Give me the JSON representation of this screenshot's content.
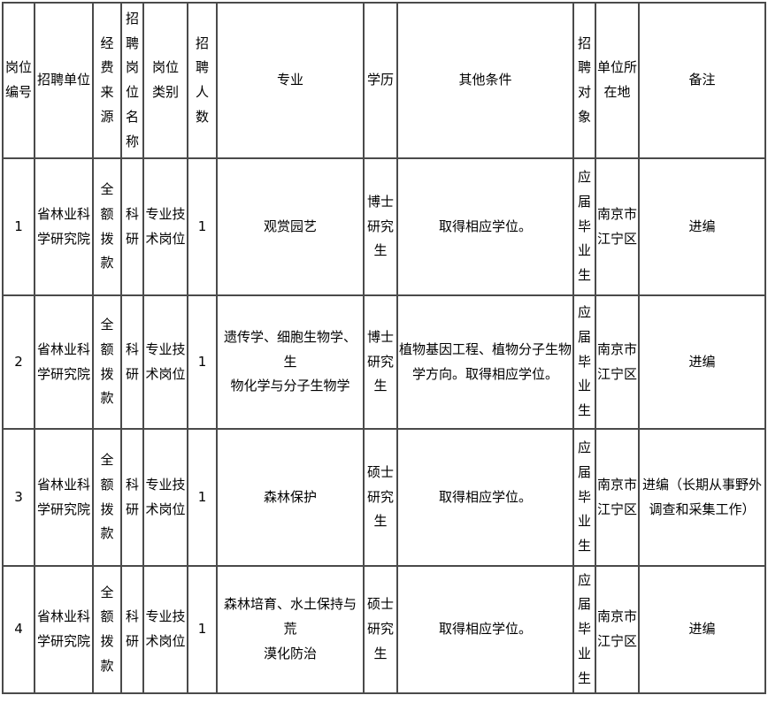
{
  "page": {
    "background": "#ffffff",
    "border_color": "#4a4a4a",
    "text_color": "#000000"
  },
  "table": {
    "headers": [
      "岗位\n编号",
      "招聘单位",
      "经费\n来源",
      "招\n聘\n岗\n位\n名\n称",
      "岗位\n类别",
      "招聘\n人数",
      "专业",
      "学历",
      "其他条件",
      "招\n聘\n对\n象",
      "单位所\n在地",
      "备注"
    ],
    "rows": [
      [
        "1",
        "省林业科\n学研究院",
        "全额\n拨款",
        "科\n研",
        "专业技\n术岗位",
        "1",
        "观赏园艺",
        "博士\n研究\n生",
        "取得相应学位。",
        "应\n届\n毕\n业\n生",
        "南京市\n江宁区",
        "进编"
      ],
      [
        "2",
        "省林业科\n学研究院",
        "全额\n拨款",
        "科\n研",
        "专业技\n术岗位",
        "1",
        "遗传学、细胞生物学、生\n物化学与分子生物学",
        "博士\n研究\n生",
        "植物基因工程、植物分子生物\n学方向。取得相应学位。",
        "应\n届\n毕\n业\n生",
        "南京市\n江宁区",
        "进编"
      ],
      [
        "3",
        "省林业科\n学研究院",
        "全额\n拨款",
        "科\n研",
        "专业技\n术岗位",
        "1",
        "森林保护",
        "硕士\n研究\n生",
        "取得相应学位。",
        "应\n届\n毕\n业\n生",
        "南京市\n江宁区",
        "进编（长期从事野外\n调查和采集工作）"
      ],
      [
        "4",
        "省林业科\n学研究院",
        "全额\n拨款",
        "科\n研",
        "专业技\n术岗位",
        "1",
        "森林培育、水土保持与荒\n漠化防治",
        "硕士\n研究\n生",
        "取得相应学位。",
        "应\n届\n毕\n业\n生",
        "南京市\n江宁区",
        "进编"
      ]
    ]
  }
}
